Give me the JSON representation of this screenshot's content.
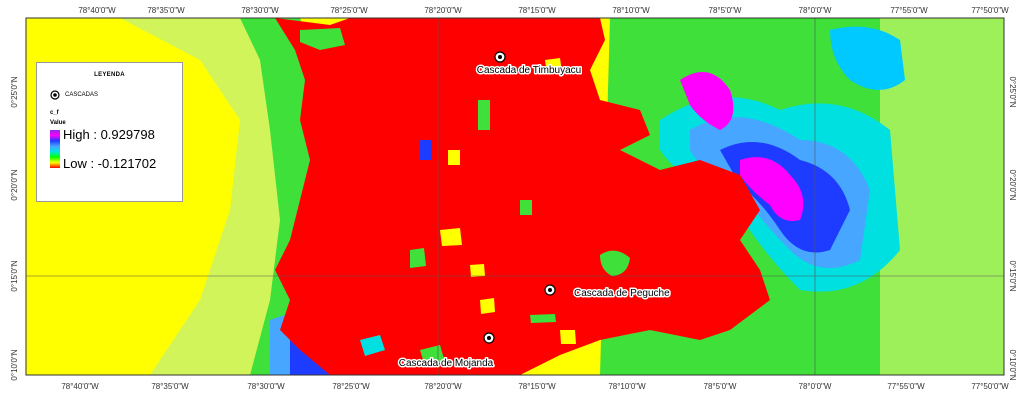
{
  "map": {
    "top_longitude_ticks": [
      "78°40'0\"W",
      "78°35'0\"W",
      "78°30'0\"W",
      "78°25'0\"W",
      "78°20'0\"W",
      "78°15'0\"W",
      "78°10'0\"W",
      "78°5'0\"W",
      "78°0'0\"W",
      "77°55'0\"W",
      "77°50'0\"W"
    ],
    "bottom_longitude_ticks": [
      "78°40'0\"W",
      "78°35'0\"W",
      "78°30'0\"W",
      "78°25'0\"W",
      "78°20'0\"W",
      "78°15'0\"W",
      "78°10'0\"W",
      "78°5'0\"W",
      "78°0'0\"W",
      "77°55'0\"W",
      "77°50'0\"W"
    ],
    "latitude_ticks": [
      "0°25'0\"N",
      "0°20'0\"N",
      "0°15'0\"N",
      "0°10'0\"N"
    ],
    "places": [
      {
        "name": "Cascada de Timbuyacu"
      },
      {
        "name": "Cascada de Peguche"
      },
      {
        "name": "Cascada de Mojanda"
      }
    ]
  },
  "legend": {
    "title": "LEYENDA",
    "marker_label": "CASCADAS",
    "layer_name": "c_f",
    "value_label": "Value",
    "high_label": "High : 0.929798",
    "low_label": "Low : -0.121702",
    "ramp_colors": [
      "#8a2be2",
      "#ff00ff",
      "#1e3cff",
      "#47a6ff",
      "#00e5e5",
      "#00ff00",
      "#ffff00",
      "#ff0000"
    ]
  }
}
